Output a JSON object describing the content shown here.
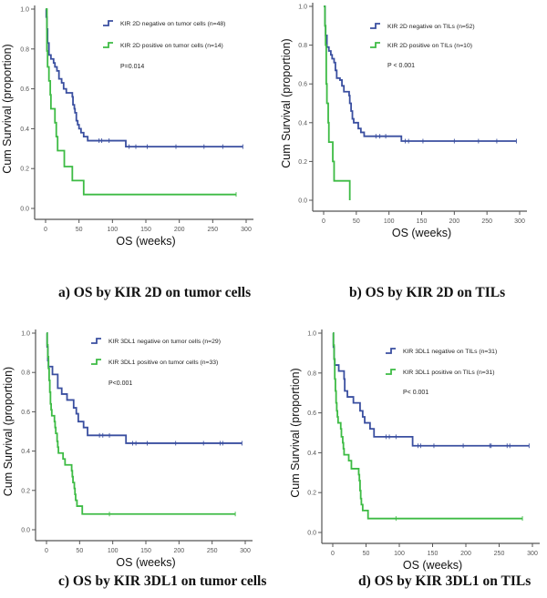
{
  "chart_data": [
    {
      "type": "line",
      "subtype": "kaplan-meier step",
      "caption": "a) OS by KIR 2D on tumor cells",
      "xlabel": "OS (weeks)",
      "ylabel": "Cum Survival (proportion)",
      "xlim": [
        0,
        300
      ],
      "ylim": [
        0,
        1.0
      ],
      "xticks": [
        "0",
        "50",
        "100",
        "150",
        "200",
        "250",
        "300"
      ],
      "yticks": [
        "0.0",
        "0.2",
        "0.4",
        "0.6",
        "0.8",
        "1.0"
      ],
      "pvalue": "P=0.014",
      "legend_position": "top-right",
      "series": [
        {
          "name": "KIR 2D negative on tumor cells (n=48)",
          "color": "#3a4fa0",
          "steps": [
            [
              0,
              1.0
            ],
            [
              1,
              0.96
            ],
            [
              2,
              0.9
            ],
            [
              3,
              0.83
            ],
            [
              5,
              0.77
            ],
            [
              8,
              0.75
            ],
            [
              12,
              0.73
            ],
            [
              14,
              0.71
            ],
            [
              17,
              0.69
            ],
            [
              20,
              0.65
            ],
            [
              24,
              0.63
            ],
            [
              27,
              0.6
            ],
            [
              31,
              0.58
            ],
            [
              40,
              0.56
            ],
            [
              41,
              0.52
            ],
            [
              43,
              0.5
            ],
            [
              44,
              0.48
            ],
            [
              46,
              0.44
            ],
            [
              48,
              0.42
            ],
            [
              50,
              0.4
            ],
            [
              53,
              0.38
            ],
            [
              57,
              0.36
            ],
            [
              63,
              0.34
            ],
            [
              120,
              0.31
            ],
            [
              295,
              0.31
            ]
          ],
          "censored": [
            80,
            84,
            95,
            125,
            135,
            152,
            195,
            237,
            265,
            295
          ]
        },
        {
          "name": "KIR 2D positive on tumor cells (n=14)",
          "color": "#3dbb44",
          "steps": [
            [
              0,
              1.0
            ],
            [
              2,
              0.79
            ],
            [
              3,
              0.71
            ],
            [
              5,
              0.64
            ],
            [
              7,
              0.57
            ],
            [
              8,
              0.5
            ],
            [
              14,
              0.43
            ],
            [
              16,
              0.36
            ],
            [
              18,
              0.29
            ],
            [
              28,
              0.21
            ],
            [
              40,
              0.14
            ],
            [
              57,
              0.07
            ],
            [
              285,
              0.07
            ]
          ],
          "censored": [
            285
          ]
        }
      ]
    },
    {
      "type": "line",
      "subtype": "kaplan-meier step",
      "caption": "b) OS by KIR 2D on TILs",
      "xlabel": "OS (weeks)",
      "ylabel": "Cum Survival (proportion)",
      "xlim": [
        0,
        300
      ],
      "ylim": [
        0,
        1.0
      ],
      "xticks": [
        "0",
        "50",
        "100",
        "150",
        "200",
        "250",
        "300"
      ],
      "yticks": [
        "0.0",
        "0.2",
        "0.4",
        "0.6",
        "0.8",
        "1.0"
      ],
      "pvalue": "P < 0.001",
      "legend_position": "top-right",
      "series": [
        {
          "name": "KIR 2D negative on TILs (n=52)",
          "color": "#3a4fa0",
          "steps": [
            [
              0,
              1.0
            ],
            [
              2,
              0.9
            ],
            [
              3,
              0.85
            ],
            [
              5,
              0.79
            ],
            [
              8,
              0.77
            ],
            [
              11,
              0.75
            ],
            [
              13,
              0.73
            ],
            [
              16,
              0.71
            ],
            [
              18,
              0.67
            ],
            [
              20,
              0.63
            ],
            [
              25,
              0.62
            ],
            [
              28,
              0.59
            ],
            [
              31,
              0.56
            ],
            [
              39,
              0.54
            ],
            [
              40,
              0.5
            ],
            [
              42,
              0.46
            ],
            [
              44,
              0.42
            ],
            [
              46,
              0.4
            ],
            [
              53,
              0.37
            ],
            [
              57,
              0.35
            ],
            [
              62,
              0.33
            ],
            [
              119,
              0.305
            ],
            [
              295,
              0.305
            ]
          ],
          "censored": [
            80,
            86,
            95,
            125,
            130,
            152,
            200,
            237,
            265,
            295
          ]
        },
        {
          "name": "KIR 2D positive on TILs (n=10)",
          "color": "#3dbb44",
          "steps": [
            [
              0,
              1.0
            ],
            [
              2,
              0.9
            ],
            [
              3,
              0.8
            ],
            [
              4,
              0.6
            ],
            [
              5,
              0.5
            ],
            [
              7,
              0.4
            ],
            [
              8,
              0.3
            ],
            [
              14,
              0.2
            ],
            [
              16,
              0.1
            ],
            [
              40,
              0.0
            ]
          ],
          "censored": []
        }
      ]
    },
    {
      "type": "line",
      "subtype": "kaplan-meier step",
      "caption": "c) OS by KIR 3DL1 on tumor cells",
      "xlabel": "OS (weeks)",
      "ylabel": "Cum Survival (proportion)",
      "xlim": [
        0,
        300
      ],
      "ylim": [
        0,
        1.0
      ],
      "xticks": [
        "0",
        "50",
        "100",
        "150",
        "200",
        "250",
        "300"
      ],
      "yticks": [
        "0.0",
        "0.2",
        "0.4",
        "0.6",
        "0.8",
        "1.0"
      ],
      "pvalue": "P<0.001",
      "legend_position": "top-right",
      "series": [
        {
          "name": "KIR 3DL1 negative on tumor cells (n=29)",
          "color": "#3a4fa0",
          "steps": [
            [
              0,
              1.0
            ],
            [
              1,
              0.93
            ],
            [
              2,
              0.86
            ],
            [
              3,
              0.83
            ],
            [
              9,
              0.79
            ],
            [
              17,
              0.72
            ],
            [
              23,
              0.69
            ],
            [
              31,
              0.66
            ],
            [
              41,
              0.62
            ],
            [
              45,
              0.59
            ],
            [
              48,
              0.55
            ],
            [
              56,
              0.52
            ],
            [
              62,
              0.48
            ],
            [
              120,
              0.44
            ],
            [
              295,
              0.44
            ]
          ],
          "censored": [
            80,
            85,
            95,
            130,
            135,
            152,
            195,
            237,
            262,
            266,
            295
          ]
        },
        {
          "name": "KIR 3DL1 positive on tumor cells (n=33)",
          "color": "#3dbb44",
          "steps": [
            [
              0,
              1.0
            ],
            [
              1,
              0.94
            ],
            [
              2,
              0.88
            ],
            [
              3,
              0.82
            ],
            [
              4,
              0.76
            ],
            [
              5,
              0.7
            ],
            [
              6,
              0.64
            ],
            [
              7,
              0.61
            ],
            [
              8,
              0.58
            ],
            [
              12,
              0.55
            ],
            [
              13,
              0.52
            ],
            [
              14,
              0.49
            ],
            [
              16,
              0.45
            ],
            [
              17,
              0.42
            ],
            [
              18,
              0.39
            ],
            [
              25,
              0.36
            ],
            [
              28,
              0.33
            ],
            [
              38,
              0.3
            ],
            [
              39,
              0.27
            ],
            [
              40,
              0.24
            ],
            [
              42,
              0.21
            ],
            [
              43,
              0.18
            ],
            [
              44,
              0.15
            ],
            [
              46,
              0.12
            ],
            [
              54,
              0.08
            ],
            [
              285,
              0.08
            ]
          ],
          "censored": [
            95,
            285
          ]
        }
      ]
    },
    {
      "type": "line",
      "subtype": "kaplan-meier step",
      "caption": "d) OS by KIR 3DL1 on TILs",
      "xlabel": "OS (weeks)",
      "ylabel": "Cum Survival (proportion)",
      "xlim": [
        0,
        300
      ],
      "ylim": [
        0,
        1.0
      ],
      "xticks": [
        "0",
        "50",
        "100",
        "150",
        "200",
        "250",
        "300"
      ],
      "yticks": [
        "0.0",
        "0.2",
        "0.4",
        "0.6",
        "0.8",
        "1.0"
      ],
      "pvalue": "P< 0.001",
      "legend_position": "top-right",
      "series": [
        {
          "name": "KIR 3DL1 negative on TILs (n=31)",
          "color": "#3a4fa0",
          "steps": [
            [
              0,
              1.0
            ],
            [
              1,
              0.93
            ],
            [
              2,
              0.87
            ],
            [
              3,
              0.84
            ],
            [
              9,
              0.81
            ],
            [
              17,
              0.77
            ],
            [
              18,
              0.71
            ],
            [
              22,
              0.68
            ],
            [
              31,
              0.65
            ],
            [
              41,
              0.61
            ],
            [
              45,
              0.58
            ],
            [
              48,
              0.55
            ],
            [
              56,
              0.52
            ],
            [
              62,
              0.48
            ],
            [
              120,
              0.435
            ],
            [
              295,
              0.435
            ]
          ],
          "censored": [
            80,
            85,
            95,
            128,
            132,
            152,
            196,
            236,
            238,
            262,
            266,
            295
          ]
        },
        {
          "name": "KIR 3DL1 positive on TILs (n=31)",
          "color": "#3dbb44",
          "steps": [
            [
              0,
              1.0
            ],
            [
              1,
              0.94
            ],
            [
              2,
              0.87
            ],
            [
              3,
              0.77
            ],
            [
              4,
              0.71
            ],
            [
              5,
              0.65
            ],
            [
              6,
              0.61
            ],
            [
              7,
              0.58
            ],
            [
              8,
              0.55
            ],
            [
              12,
              0.52
            ],
            [
              13,
              0.48
            ],
            [
              15,
              0.45
            ],
            [
              16,
              0.42
            ],
            [
              17,
              0.39
            ],
            [
              24,
              0.36
            ],
            [
              28,
              0.32
            ],
            [
              39,
              0.29
            ],
            [
              40,
              0.26
            ],
            [
              41,
              0.21
            ],
            [
              42,
              0.17
            ],
            [
              43,
              0.14
            ],
            [
              45,
              0.11
            ],
            [
              53,
              0.07
            ],
            [
              285,
              0.07
            ]
          ],
          "censored": [
            95,
            285
          ]
        }
      ]
    }
  ]
}
